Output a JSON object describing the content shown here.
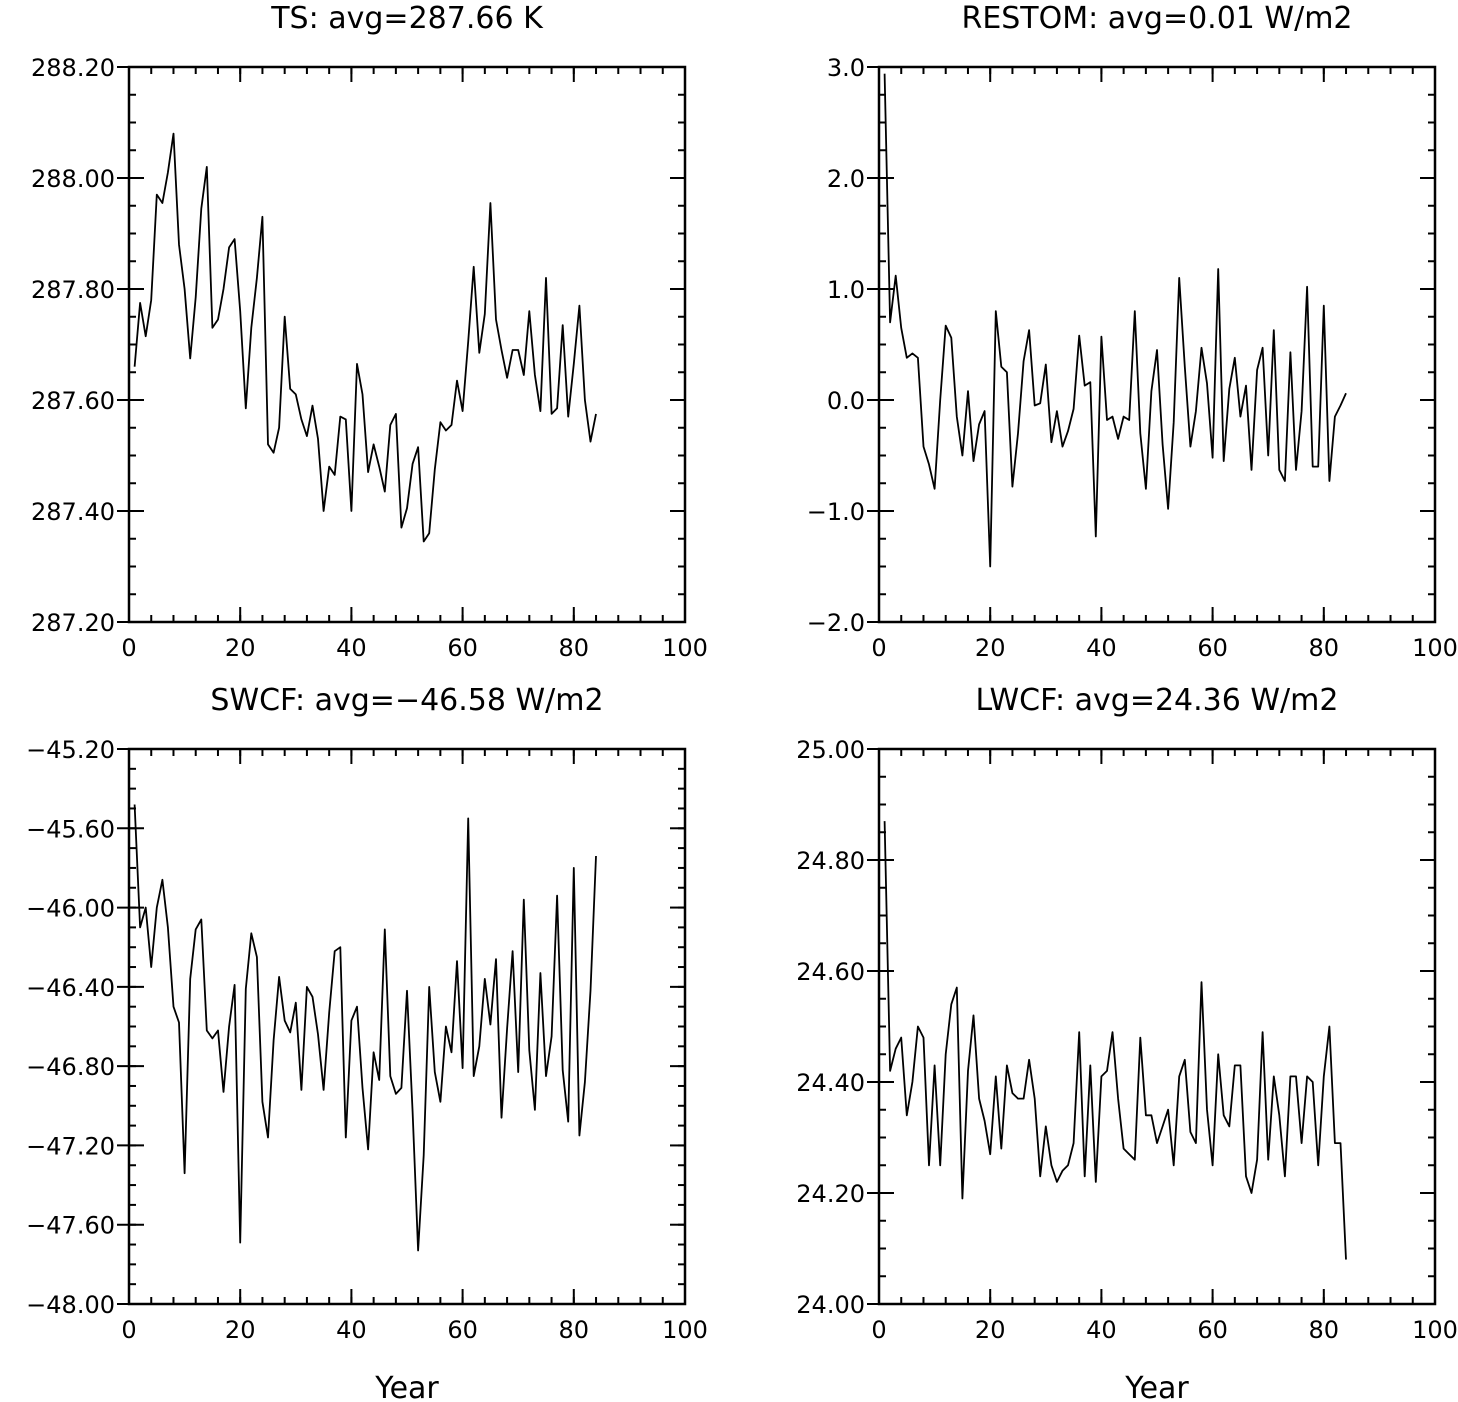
{
  "chart_data": [
    {
      "type": "line",
      "title": "TS: avg=287.66 K",
      "xlabel": "",
      "ylabel": "",
      "xlim": [
        0,
        100
      ],
      "ylim": [
        287.2,
        288.2
      ],
      "xticks": [
        0,
        20,
        40,
        60,
        80,
        100
      ],
      "xtick_labels": [
        "0",
        "20",
        "40",
        "60",
        "80",
        "100"
      ],
      "yticks": [
        287.2,
        287.4,
        287.6,
        287.8,
        288.0,
        288.2
      ],
      "ytick_labels": [
        "287.20",
        "287.40",
        "287.60",
        "287.80",
        "288.00",
        "288.20"
      ],
      "y_minor_step": 0.05,
      "x_minor_step": 4,
      "grid": false,
      "x": [
        1,
        2,
        3,
        4,
        5,
        6,
        7,
        8,
        9,
        10,
        11,
        12,
        13,
        14,
        15,
        16,
        17,
        18,
        19,
        20,
        21,
        22,
        23,
        24,
        25,
        26,
        27,
        28,
        29,
        30,
        31,
        32,
        33,
        34,
        35,
        36,
        37,
        38,
        39,
        40,
        41,
        42,
        43,
        44,
        45,
        46,
        47,
        48,
        49,
        50,
        51,
        52,
        53,
        54,
        55,
        56,
        57,
        58,
        59,
        60,
        61,
        62,
        63,
        64,
        65,
        66,
        67,
        68,
        69,
        70,
        71,
        72,
        73,
        74,
        75,
        76,
        77,
        78,
        79,
        80,
        81,
        82,
        83,
        84
      ],
      "values": [
        287.66,
        287.775,
        287.715,
        287.78,
        287.97,
        287.955,
        288.01,
        288.08,
        287.88,
        287.8,
        287.675,
        287.785,
        287.945,
        288.02,
        287.73,
        287.745,
        287.8,
        287.875,
        287.89,
        287.76,
        287.585,
        287.73,
        287.82,
        287.93,
        287.52,
        287.505,
        287.55,
        287.75,
        287.62,
        287.61,
        287.565,
        287.535,
        287.59,
        287.53,
        287.4,
        287.48,
        287.465,
        287.57,
        287.565,
        287.4,
        287.665,
        287.61,
        287.47,
        287.52,
        287.48,
        287.435,
        287.555,
        287.575,
        287.37,
        287.405,
        287.485,
        287.515,
        287.345,
        287.36,
        287.475,
        287.56,
        287.545,
        287.555,
        287.635,
        287.58,
        287.705,
        287.84,
        287.685,
        287.755,
        287.955,
        287.745,
        287.69,
        287.64,
        287.69,
        287.69,
        287.645,
        287.76,
        287.645,
        287.58,
        287.82,
        287.575,
        287.585,
        287.735,
        287.57,
        287.665,
        287.77,
        287.6,
        287.525,
        287.575
      ]
    },
    {
      "type": "line",
      "title": "RESTOM: avg=0.01 W/m2",
      "xlabel": "",
      "ylabel": "",
      "xlim": [
        0,
        100
      ],
      "ylim": [
        -2.0,
        3.0
      ],
      "xticks": [
        0,
        20,
        40,
        60,
        80,
        100
      ],
      "xtick_labels": [
        "0",
        "20",
        "40",
        "60",
        "80",
        "100"
      ],
      "yticks": [
        -2.0,
        -1.0,
        0.0,
        1.0,
        2.0,
        3.0
      ],
      "ytick_labels": [
        "−2.0",
        "−1.0",
        "0.0",
        "1.0",
        "2.0",
        "3.0"
      ],
      "y_minor_step": 0.25,
      "x_minor_step": 4,
      "grid": false,
      "x": [
        1,
        2,
        3,
        4,
        5,
        6,
        7,
        8,
        9,
        10,
        11,
        12,
        13,
        14,
        15,
        16,
        17,
        18,
        19,
        20,
        21,
        22,
        23,
        24,
        25,
        26,
        27,
        28,
        29,
        30,
        31,
        32,
        33,
        34,
        35,
        36,
        37,
        38,
        39,
        40,
        41,
        42,
        43,
        44,
        45,
        46,
        47,
        48,
        49,
        50,
        51,
        52,
        53,
        54,
        55,
        56,
        57,
        58,
        59,
        60,
        61,
        62,
        63,
        64,
        65,
        66,
        67,
        68,
        69,
        70,
        71,
        72,
        73,
        74,
        75,
        76,
        77,
        78,
        79,
        80,
        81,
        82,
        83,
        84
      ],
      "values": [
        2.94,
        0.7,
        1.12,
        0.65,
        0.38,
        0.42,
        0.38,
        -0.42,
        -0.58,
        -0.8,
        0.0,
        0.67,
        0.56,
        -0.15,
        -0.5,
        0.08,
        -0.55,
        -0.22,
        -0.1,
        -1.5,
        0.8,
        0.3,
        0.25,
        -0.78,
        -0.3,
        0.35,
        0.63,
        -0.05,
        -0.03,
        0.32,
        -0.38,
        -0.1,
        -0.42,
        -0.28,
        -0.08,
        0.58,
        0.13,
        0.16,
        -1.23,
        0.57,
        -0.18,
        -0.15,
        -0.35,
        -0.15,
        -0.18,
        0.8,
        -0.3,
        -0.8,
        0.08,
        0.45,
        -0.4,
        -0.98,
        -0.2,
        1.1,
        0.3,
        -0.42,
        -0.1,
        0.47,
        0.15,
        -0.52,
        1.18,
        -0.55,
        0.1,
        0.38,
        -0.15,
        0.13,
        -0.63,
        0.27,
        0.47,
        -0.5,
        0.63,
        -0.63,
        -0.73,
        0.43,
        -0.63,
        -0.1,
        1.02,
        -0.6,
        -0.6,
        0.85,
        -0.73,
        -0.15,
        -0.05,
        0.06
      ]
    },
    {
      "type": "line",
      "title": "SWCF: avg=−46.58 W/m2",
      "xlabel": "Year",
      "ylabel": "",
      "xlim": [
        0,
        100
      ],
      "ylim": [
        -48.0,
        -45.2
      ],
      "xticks": [
        0,
        20,
        40,
        60,
        80,
        100
      ],
      "xtick_labels": [
        "0",
        "20",
        "40",
        "60",
        "80",
        "100"
      ],
      "yticks": [
        -48.0,
        -47.6,
        -47.2,
        -46.8,
        -46.4,
        -46.0,
        -45.6,
        -45.2
      ],
      "ytick_labels": [
        "−48.00",
        "−47.60",
        "−47.20",
        "−46.80",
        "−46.40",
        "−46.00",
        "−45.60",
        "−45.20"
      ],
      "y_minor_step": 0.1,
      "x_minor_step": 4,
      "grid": false,
      "x": [
        1,
        2,
        3,
        4,
        5,
        6,
        7,
        8,
        9,
        10,
        11,
        12,
        13,
        14,
        15,
        16,
        17,
        18,
        19,
        20,
        21,
        22,
        23,
        24,
        25,
        26,
        27,
        28,
        29,
        30,
        31,
        32,
        33,
        34,
        35,
        36,
        37,
        38,
        39,
        40,
        41,
        42,
        43,
        44,
        45,
        46,
        47,
        48,
        49,
        50,
        51,
        52,
        53,
        54,
        55,
        56,
        57,
        58,
        59,
        60,
        61,
        62,
        63,
        64,
        65,
        66,
        67,
        68,
        69,
        70,
        71,
        72,
        73,
        74,
        75,
        76,
        77,
        78,
        79,
        80,
        81,
        82,
        83,
        84
      ],
      "values": [
        -45.48,
        -46.1,
        -46.0,
        -46.3,
        -46.0,
        -45.86,
        -46.1,
        -46.5,
        -46.58,
        -47.34,
        -46.36,
        -46.11,
        -46.06,
        -46.62,
        -46.66,
        -46.62,
        -46.93,
        -46.6,
        -46.39,
        -47.69,
        -46.41,
        -46.13,
        -46.25,
        -46.98,
        -47.16,
        -46.67,
        -46.35,
        -46.57,
        -46.63,
        -46.48,
        -46.92,
        -46.4,
        -46.45,
        -46.64,
        -46.92,
        -46.53,
        -46.22,
        -46.2,
        -47.16,
        -46.57,
        -46.5,
        -46.91,
        -47.22,
        -46.73,
        -46.87,
        -46.11,
        -46.85,
        -46.94,
        -46.91,
        -46.42,
        -47.03,
        -47.73,
        -47.25,
        -46.4,
        -46.83,
        -46.98,
        -46.6,
        -46.73,
        -46.27,
        -46.81,
        -45.55,
        -46.85,
        -46.7,
        -46.36,
        -46.59,
        -46.26,
        -47.06,
        -46.61,
        -46.22,
        -46.83,
        -45.96,
        -46.72,
        -47.02,
        -46.33,
        -46.85,
        -46.65,
        -45.94,
        -46.82,
        -47.08,
        -45.8,
        -47.15,
        -46.88,
        -46.42,
        -45.74
      ]
    },
    {
      "type": "line",
      "title": "LWCF: avg=24.36 W/m2",
      "xlabel": "Year",
      "ylabel": "",
      "xlim": [
        0,
        100
      ],
      "ylim": [
        24.0,
        25.0
      ],
      "xticks": [
        0,
        20,
        40,
        60,
        80,
        100
      ],
      "xtick_labels": [
        "0",
        "20",
        "40",
        "60",
        "80",
        "100"
      ],
      "yticks": [
        24.0,
        24.2,
        24.4,
        24.6,
        24.8,
        25.0
      ],
      "ytick_labels": [
        "24.00",
        "24.20",
        "24.40",
        "24.60",
        "24.80",
        "25.00"
      ],
      "y_minor_step": 0.05,
      "x_minor_step": 4,
      "grid": false,
      "x": [
        1,
        2,
        3,
        4,
        5,
        6,
        7,
        8,
        9,
        10,
        11,
        12,
        13,
        14,
        15,
        16,
        17,
        18,
        19,
        20,
        21,
        22,
        23,
        24,
        25,
        26,
        27,
        28,
        29,
        30,
        31,
        32,
        33,
        34,
        35,
        36,
        37,
        38,
        39,
        40,
        41,
        42,
        43,
        44,
        45,
        46,
        47,
        48,
        49,
        50,
        51,
        52,
        53,
        54,
        55,
        56,
        57,
        58,
        59,
        60,
        61,
        62,
        63,
        64,
        65,
        66,
        67,
        68,
        69,
        70,
        71,
        72,
        73,
        74,
        75,
        76,
        77,
        78,
        79,
        80,
        81,
        82,
        83,
        84
      ],
      "values": [
        24.87,
        24.42,
        24.46,
        24.48,
        24.34,
        24.4,
        24.5,
        24.48,
        24.25,
        24.43,
        24.25,
        24.45,
        24.54,
        24.57,
        24.19,
        24.42,
        24.52,
        24.37,
        24.33,
        24.27,
        24.41,
        24.28,
        24.43,
        24.38,
        24.37,
        24.37,
        24.44,
        24.37,
        24.23,
        24.32,
        24.25,
        24.22,
        24.24,
        24.25,
        24.29,
        24.49,
        24.23,
        24.43,
        24.22,
        24.41,
        24.42,
        24.49,
        24.37,
        24.28,
        24.27,
        24.26,
        24.48,
        24.34,
        24.34,
        24.29,
        24.32,
        24.35,
        24.25,
        24.41,
        24.44,
        24.31,
        24.29,
        24.58,
        24.35,
        24.25,
        24.45,
        24.34,
        24.32,
        24.43,
        24.43,
        24.23,
        24.2,
        24.26,
        24.49,
        24.26,
        24.41,
        24.34,
        24.23,
        24.41,
        24.41,
        24.29,
        24.41,
        24.4,
        24.25,
        24.41,
        24.5,
        24.29,
        24.29,
        24.08
      ]
    }
  ]
}
